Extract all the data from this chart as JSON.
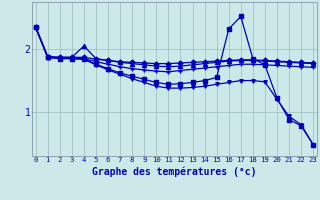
{
  "xlabel": "Graphe des températures (°c)",
  "bg_color": "#cce8e8",
  "line_color": "#0000bb",
  "grid_color": "#99bbbb",
  "xmin": 0,
  "xmax": 23,
  "ymin": 0.3,
  "ymax": 2.75,
  "yticks": [
    1,
    2
  ],
  "xticks": [
    0,
    1,
    2,
    3,
    4,
    5,
    6,
    7,
    8,
    9,
    10,
    11,
    12,
    13,
    14,
    15,
    16,
    17,
    18,
    19,
    20,
    21,
    22,
    23
  ],
  "lines": [
    {
      "x": [
        0,
        1,
        2,
        3,
        4,
        5,
        6,
        7,
        8,
        9,
        10,
        11,
        12,
        13,
        14,
        15,
        16,
        17,
        18,
        19,
        20,
        21,
        22,
        23
      ],
      "y": [
        2.35,
        1.88,
        1.87,
        1.87,
        1.87,
        1.84,
        1.82,
        1.8,
        1.79,
        1.78,
        1.77,
        1.77,
        1.78,
        1.79,
        1.8,
        1.81,
        1.82,
        1.83,
        1.83,
        1.82,
        1.81,
        1.8,
        1.79,
        1.78
      ],
      "marker": "D",
      "ms": 2.5,
      "lw": 0.9
    },
    {
      "x": [
        0,
        1,
        2,
        3,
        4,
        5,
        6,
        7,
        8,
        9,
        10,
        11,
        12,
        13,
        14,
        15,
        16,
        17,
        18,
        19,
        20,
        21,
        22,
        23
      ],
      "y": [
        2.35,
        1.88,
        1.87,
        1.87,
        2.05,
        1.85,
        1.82,
        1.79,
        1.77,
        1.75,
        1.73,
        1.72,
        1.73,
        1.75,
        1.77,
        1.79,
        1.81,
        1.82,
        1.82,
        1.81,
        1.8,
        1.79,
        1.78,
        1.77
      ],
      "marker": "^",
      "ms": 3,
      "lw": 0.9
    },
    {
      "x": [
        0,
        1,
        2,
        3,
        4,
        5,
        6,
        7,
        8,
        9,
        10,
        11,
        12,
        13,
        14,
        15,
        16,
        17,
        18,
        19,
        20,
        21,
        22,
        23
      ],
      "y": [
        2.35,
        1.87,
        1.86,
        1.86,
        1.85,
        1.8,
        1.76,
        1.72,
        1.69,
        1.67,
        1.65,
        1.64,
        1.66,
        1.68,
        1.7,
        1.72,
        1.74,
        1.76,
        1.76,
        1.75,
        1.74,
        1.73,
        1.72,
        1.71
      ],
      "marker": "+",
      "ms": 3.5,
      "lw": 0.9
    },
    {
      "x": [
        0,
        1,
        2,
        3,
        4,
        5,
        6,
        7,
        8,
        9,
        10,
        11,
        12,
        13,
        14,
        15,
        16,
        17,
        18,
        19,
        20,
        21,
        22,
        23
      ],
      "y": [
        2.35,
        1.87,
        1.85,
        1.85,
        1.84,
        1.76,
        1.69,
        1.62,
        1.57,
        1.52,
        1.47,
        1.44,
        1.45,
        1.47,
        1.5,
        1.55,
        2.32,
        2.52,
        1.85,
        1.75,
        1.22,
        0.88,
        0.78,
        0.48
      ],
      "marker": "s",
      "ms": 2.5,
      "lw": 0.9
    },
    {
      "x": [
        0,
        1,
        2,
        3,
        4,
        5,
        6,
        7,
        8,
        9,
        10,
        11,
        12,
        13,
        14,
        15,
        16,
        17,
        18,
        19,
        20,
        21,
        22,
        23
      ],
      "y": [
        2.35,
        1.87,
        1.85,
        1.85,
        1.84,
        1.75,
        1.67,
        1.6,
        1.53,
        1.47,
        1.41,
        1.38,
        1.38,
        1.39,
        1.41,
        1.44,
        1.47,
        1.5,
        1.5,
        1.48,
        1.2,
        0.93,
        0.8,
        0.48
      ],
      "marker": "v",
      "ms": 2.5,
      "lw": 0.9
    }
  ]
}
